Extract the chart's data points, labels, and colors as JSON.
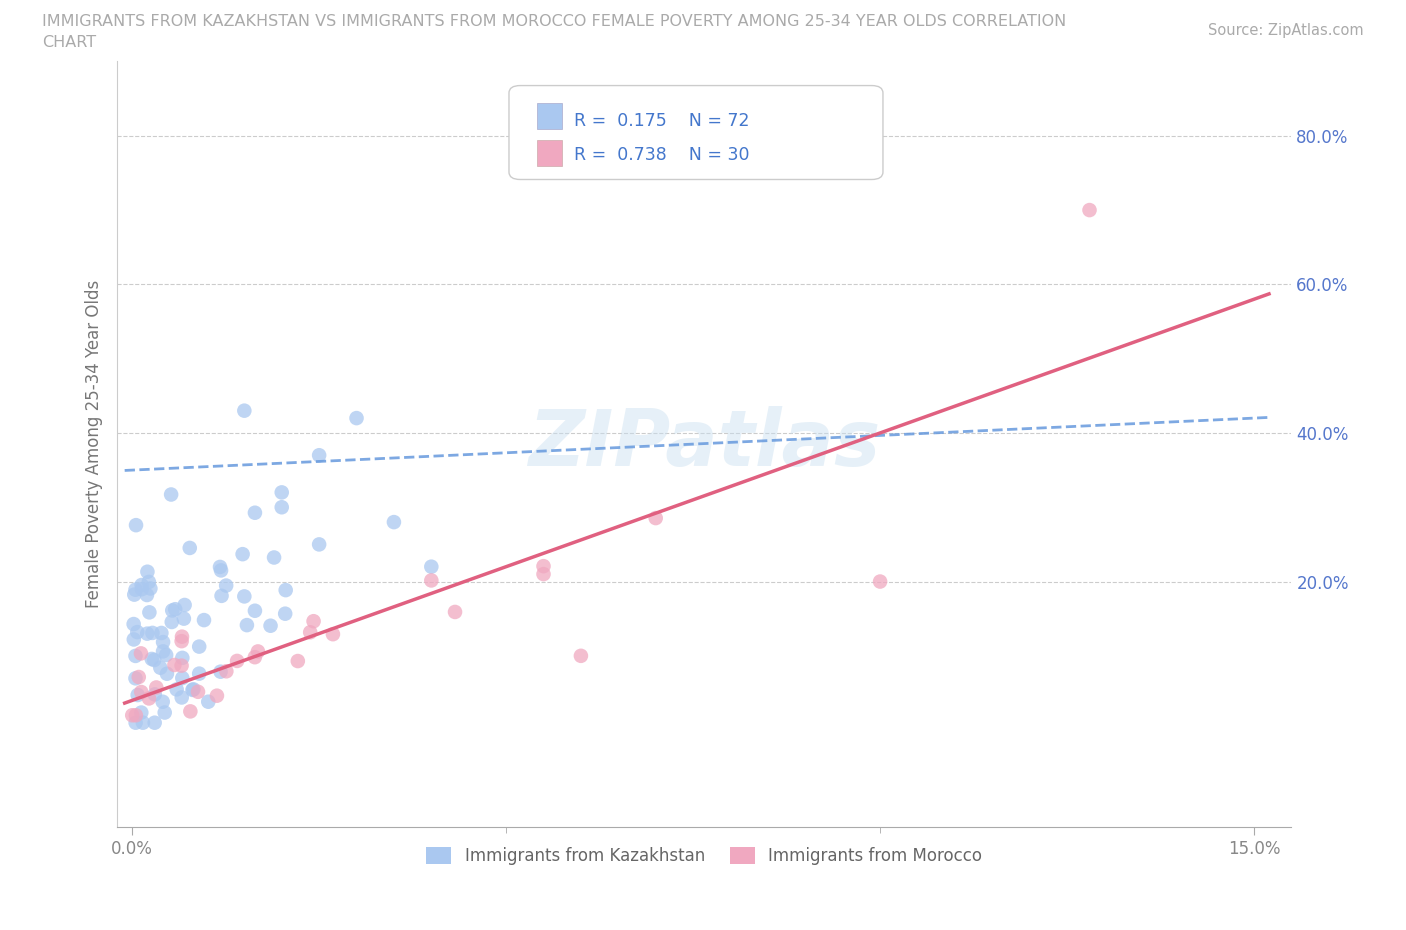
{
  "title_line1": "IMMIGRANTS FROM KAZAKHSTAN VS IMMIGRANTS FROM MOROCCO FEMALE POVERTY AMONG 25-34 YEAR OLDS CORRELATION",
  "title_line2": "CHART",
  "source_text": "Source: ZipAtlas.com",
  "ylabel": "Female Poverty Among 25-34 Year Olds",
  "xlim": [
    -0.002,
    0.155
  ],
  "ylim": [
    -0.13,
    0.9
  ],
  "ytick_values": [
    0.2,
    0.4,
    0.6,
    0.8
  ],
  "ytick_labels": [
    "20.0%",
    "40.0%",
    "60.0%",
    "80.0%"
  ],
  "xtick_values": [
    0.0,
    0.15
  ],
  "xtick_labels": [
    "0.0%",
    "15.0%"
  ],
  "R_kazakhstan": 0.175,
  "N_kazakhstan": 72,
  "R_morocco": 0.738,
  "N_morocco": 30,
  "color_kazakhstan": "#aac8f0",
  "color_morocco": "#f0a8c0",
  "trendline_kaz_color": "#6699dd",
  "trendline_mor_color": "#e06080",
  "watermark": "ZIPatlas",
  "background_color": "#ffffff",
  "grid_color": "#cccccc",
  "ytick_color": "#5577cc",
  "xtick_color": "#888888",
  "title_color": "#aaaaaa",
  "legend_text_color": "#4477cc",
  "legend_box_color": "#eeeeee",
  "ylabel_color": "#777777",
  "trendline_kaz_intercept": 0.35,
  "trendline_kaz_slope": 0.55,
  "trendline_mor_intercept": 0.04,
  "trendline_mor_slope": 3.73
}
